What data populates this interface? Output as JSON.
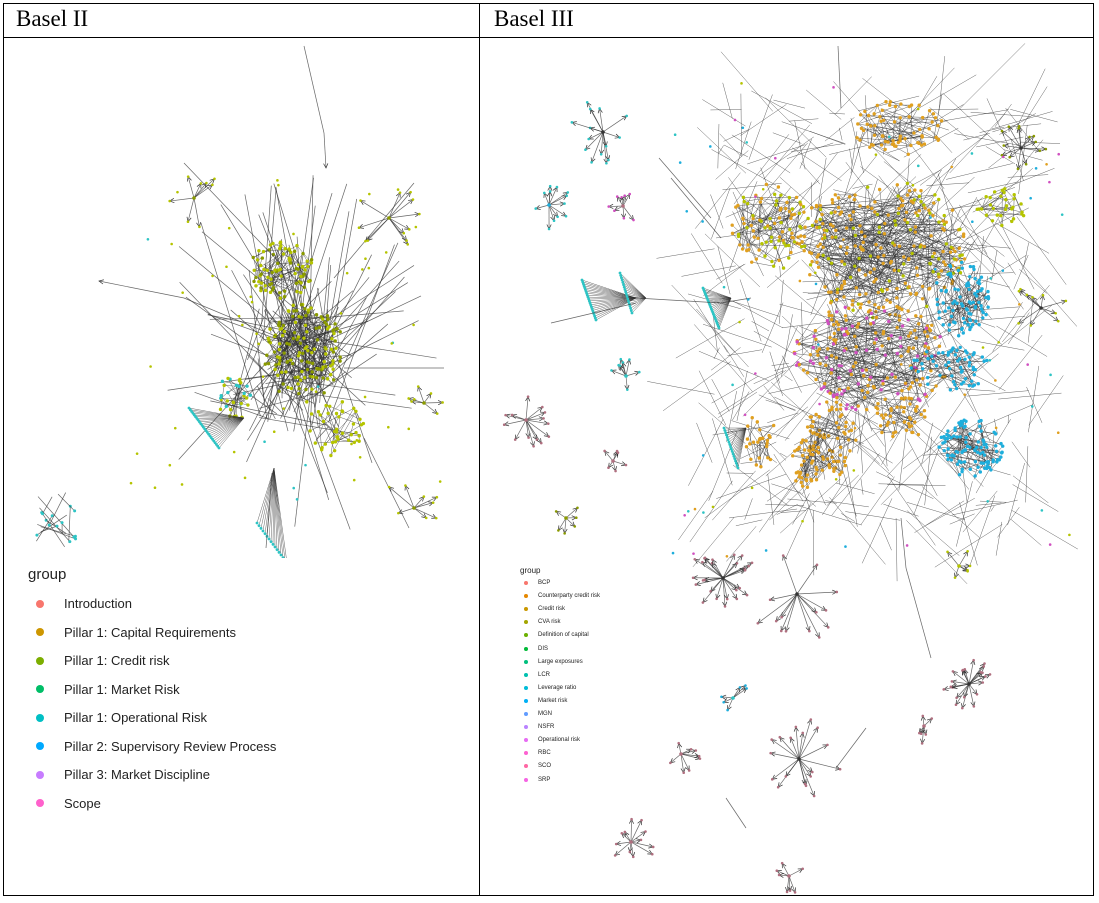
{
  "headers": {
    "left": "Basel II",
    "right": "Basel III"
  },
  "legend_left": {
    "title": "group",
    "items": [
      {
        "label": "Introduction",
        "color": "#F8766D"
      },
      {
        "label": "Pillar 1: Capital Requirements",
        "color": "#CD9600"
      },
      {
        "label": "Pillar 1: Credit risk",
        "color": "#7CAE00"
      },
      {
        "label": "Pillar 1: Market Risk",
        "color": "#00BE67"
      },
      {
        "label": "Pillar 1: Operational Risk",
        "color": "#00BFC4"
      },
      {
        "label": "Pillar 2: Supervisory Review Process",
        "color": "#00A9FF"
      },
      {
        "label": "Pillar 3: Market Discipline",
        "color": "#C77CFF"
      },
      {
        "label": "Scope",
        "color": "#FF61CC"
      }
    ]
  },
  "legend_right": {
    "title": "group",
    "items": [
      {
        "label": "BCP",
        "color": "#F8766D"
      },
      {
        "label": "Counterparty credit risk",
        "color": "#E58700"
      },
      {
        "label": "Credit risk",
        "color": "#C99800"
      },
      {
        "label": "CVA risk",
        "color": "#A3A500"
      },
      {
        "label": "Definition of capital",
        "color": "#6BB100"
      },
      {
        "label": "DIS",
        "color": "#00BA38"
      },
      {
        "label": "Large exposures",
        "color": "#00BF7D"
      },
      {
        "label": "LCR",
        "color": "#00C0AF"
      },
      {
        "label": "Leverage ratio",
        "color": "#00BCD8"
      },
      {
        "label": "Market risk",
        "color": "#00B0F6"
      },
      {
        "label": "MGN",
        "color": "#619CFF"
      },
      {
        "label": "NSFR",
        "color": "#B983FF"
      },
      {
        "label": "Operational risk",
        "color": "#E76BF3"
      },
      {
        "label": "RBC",
        "color": "#FD61D1"
      },
      {
        "label": "SCO",
        "color": "#FF67A4"
      },
      {
        "label": "SRP",
        "color": "#F564E3"
      }
    ]
  },
  "node_colors": {
    "edge": "#333333",
    "credit": "#b5c400",
    "olive": "#8a9a00",
    "teal": "#2ec4c4",
    "orange": "#e0a020",
    "blue": "#1eaedc",
    "pink": "#d050c0",
    "mauve": "#b07080"
  }
}
